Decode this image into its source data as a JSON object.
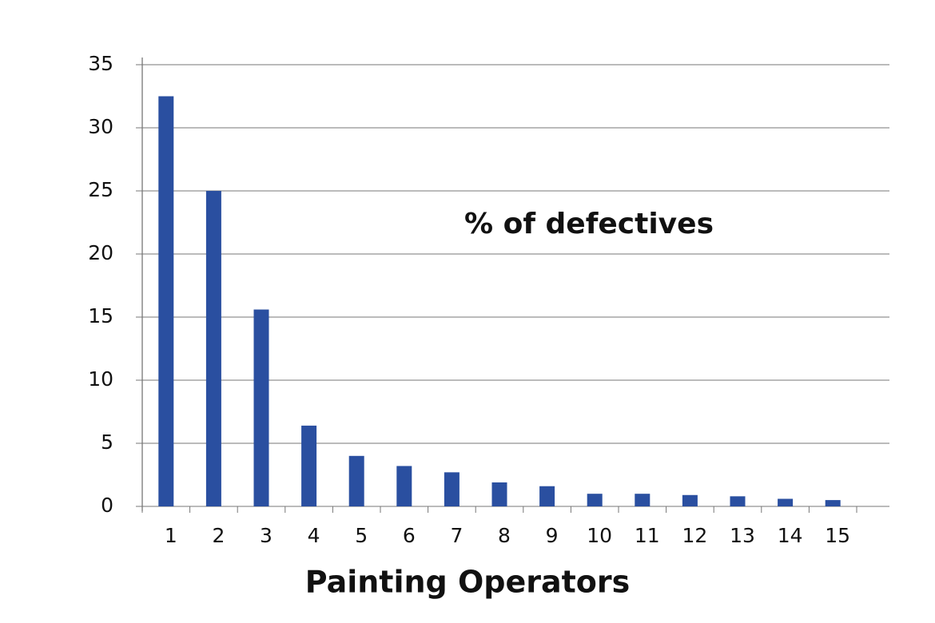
{
  "chart_data": {
    "type": "bar",
    "x_label": "Painting Operators",
    "categories": [
      "1",
      "2",
      "3",
      "4",
      "5",
      "6",
      "7",
      "8",
      "9",
      "10",
      "11",
      "12",
      "13",
      "14",
      "15"
    ],
    "series": [
      {
        "name": "% of defectives",
        "color": "#2a4fa0",
        "values": [
          32.5,
          25.0,
          15.6,
          6.4,
          4.0,
          3.2,
          2.7,
          1.9,
          1.6,
          1.0,
          1.0,
          0.9,
          0.8,
          0.6,
          0.5
        ]
      }
    ],
    "ylim": [
      0,
      35
    ],
    "yticks": [
      0,
      5,
      10,
      15,
      20,
      25,
      30,
      35
    ],
    "grid": true
  }
}
